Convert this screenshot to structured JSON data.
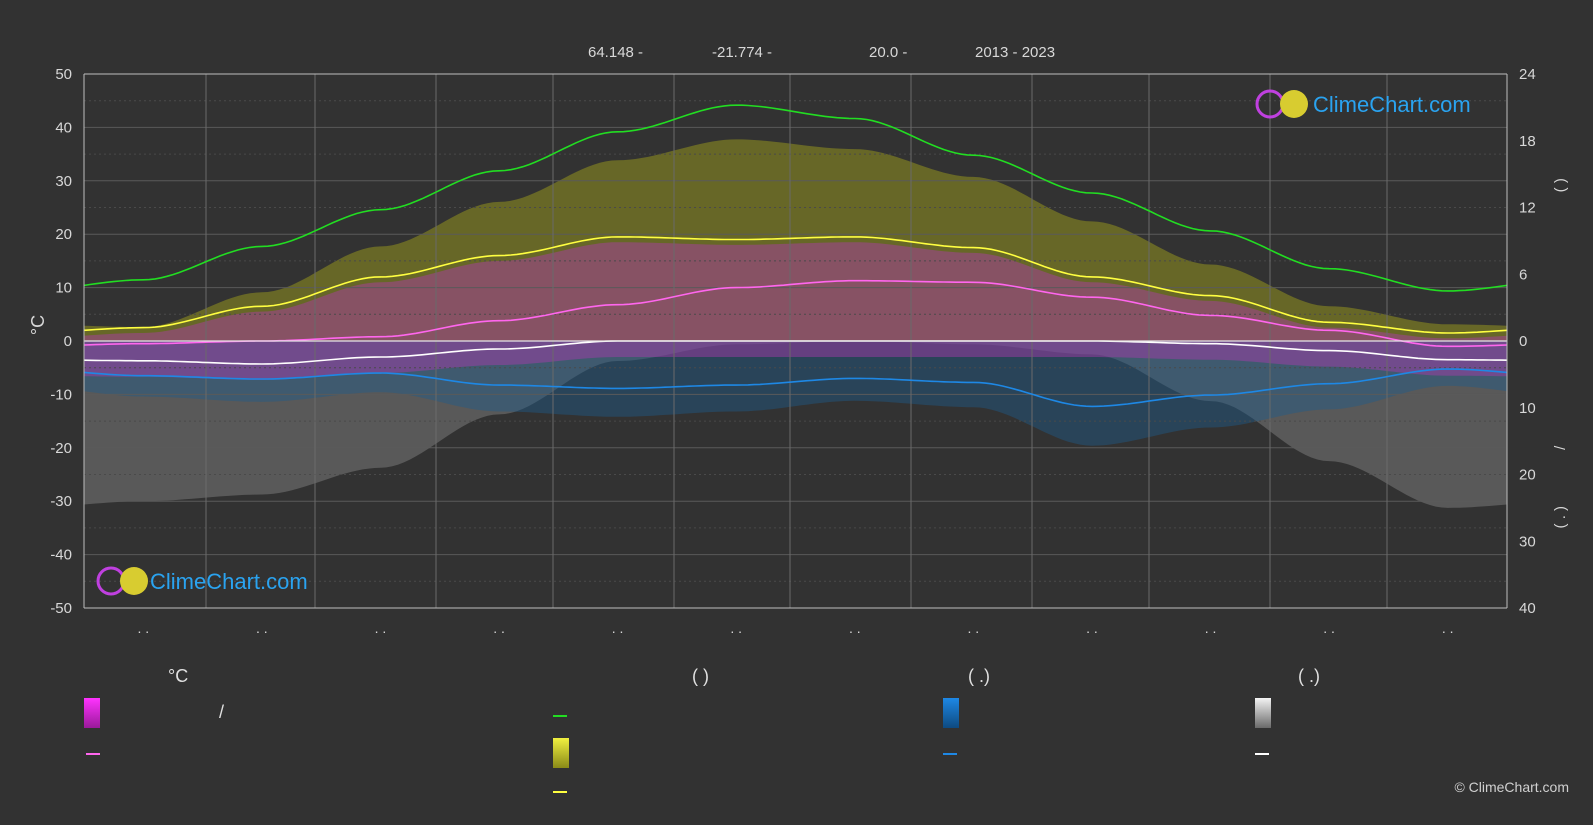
{
  "header": {
    "lat": "64.148 -",
    "lon": "-21.774 -",
    "elev": "20.0 -",
    "years": "2013 - 2023"
  },
  "brand": {
    "name": "ClimeChart.com",
    "copyright": "© ClimeChart.com"
  },
  "colors": {
    "background": "#323232",
    "daylight": "#22dd22",
    "sunshine": "#e8e830",
    "max_temp": "#ffff40",
    "mean_temp": "#ff66ee",
    "min_temp": "#ffffff",
    "rain": "#1e88e5",
    "snow": "#eeeeee",
    "brand": "#2aa3f0"
  },
  "legend": {
    "temp_head": "°C",
    "sun_head": "(          )",
    "rain_head": "(   .)",
    "snow_head": "(   .)",
    "temp_slash": "/"
  },
  "chart_data": {
    "type": "line",
    "ylabel_left": "°C",
    "left_ticks": [
      "50",
      "40",
      "30",
      "20",
      "10",
      "0",
      "-10",
      "-20",
      "-30",
      "-40",
      "-50"
    ],
    "right_ticks_top": [
      "24",
      "18",
      "12",
      "6",
      "0"
    ],
    "right_ticks_bottom": [
      "10",
      "20",
      "30",
      "40"
    ],
    "right_axis_fragments": [
      "(    )",
      "/",
      "(  .  )"
    ],
    "month_tick_labels": [
      ". .",
      ". .",
      ". .",
      ". .",
      ". .",
      ". .",
      ". .",
      ". .",
      ". .",
      ". .",
      ". .",
      ". ."
    ],
    "x_months": [
      0.5,
      1.5,
      2.5,
      3.5,
      4.5,
      5.5,
      6.5,
      7.5,
      8.5,
      9.5,
      10.5,
      11.5
    ],
    "ylim": [
      -50,
      50
    ],
    "right_ylim_hours": [
      0,
      24
    ],
    "right_ylim_precip_mm": [
      0,
      40
    ],
    "series": [
      {
        "key": "daylight_hours",
        "axis": "right_hours",
        "values": [
          5.5,
          8.5,
          11.8,
          15.3,
          18.8,
          21.2,
          20.0,
          16.7,
          13.3,
          9.9,
          6.5,
          4.5
        ]
      },
      {
        "key": "max_temp",
        "axis": "left",
        "values": [
          2.5,
          6.5,
          12.0,
          16.0,
          19.5,
          19.0,
          19.5,
          17.5,
          12.0,
          8.5,
          3.5,
          1.5
        ]
      },
      {
        "key": "mean_temp",
        "axis": "left",
        "values": [
          -0.5,
          0.0,
          0.8,
          3.8,
          6.8,
          10.0,
          11.3,
          11.0,
          8.2,
          4.8,
          2.0,
          -1.0
        ]
      },
      {
        "key": "min_temp",
        "axis": "left",
        "values": [
          -3.7,
          -4.3,
          -3.0,
          -1.5,
          0.0,
          0.0,
          0.0,
          0.0,
          0.0,
          -0.5,
          -1.8,
          -3.5
        ]
      },
      {
        "key": "rain_mm",
        "axis": "right_precip",
        "values": [
          5.2,
          5.7,
          4.8,
          6.6,
          7.1,
          6.6,
          5.6,
          6.2,
          9.8,
          8.1,
          6.4,
          4.2
        ]
      }
    ],
    "sunshine_hours_band": [
      1.0,
      3.5,
      6.8,
      10.0,
      13.0,
      14.5,
      13.8,
      11.8,
      8.6,
      5.5,
      2.5,
      1.2
    ],
    "snow_mm_band": [
      24.0,
      23.0,
      19.0,
      11.0,
      3.0,
      0.5,
      0.0,
      0.5,
      2.0,
      9.0,
      18.0,
      25.0
    ]
  }
}
